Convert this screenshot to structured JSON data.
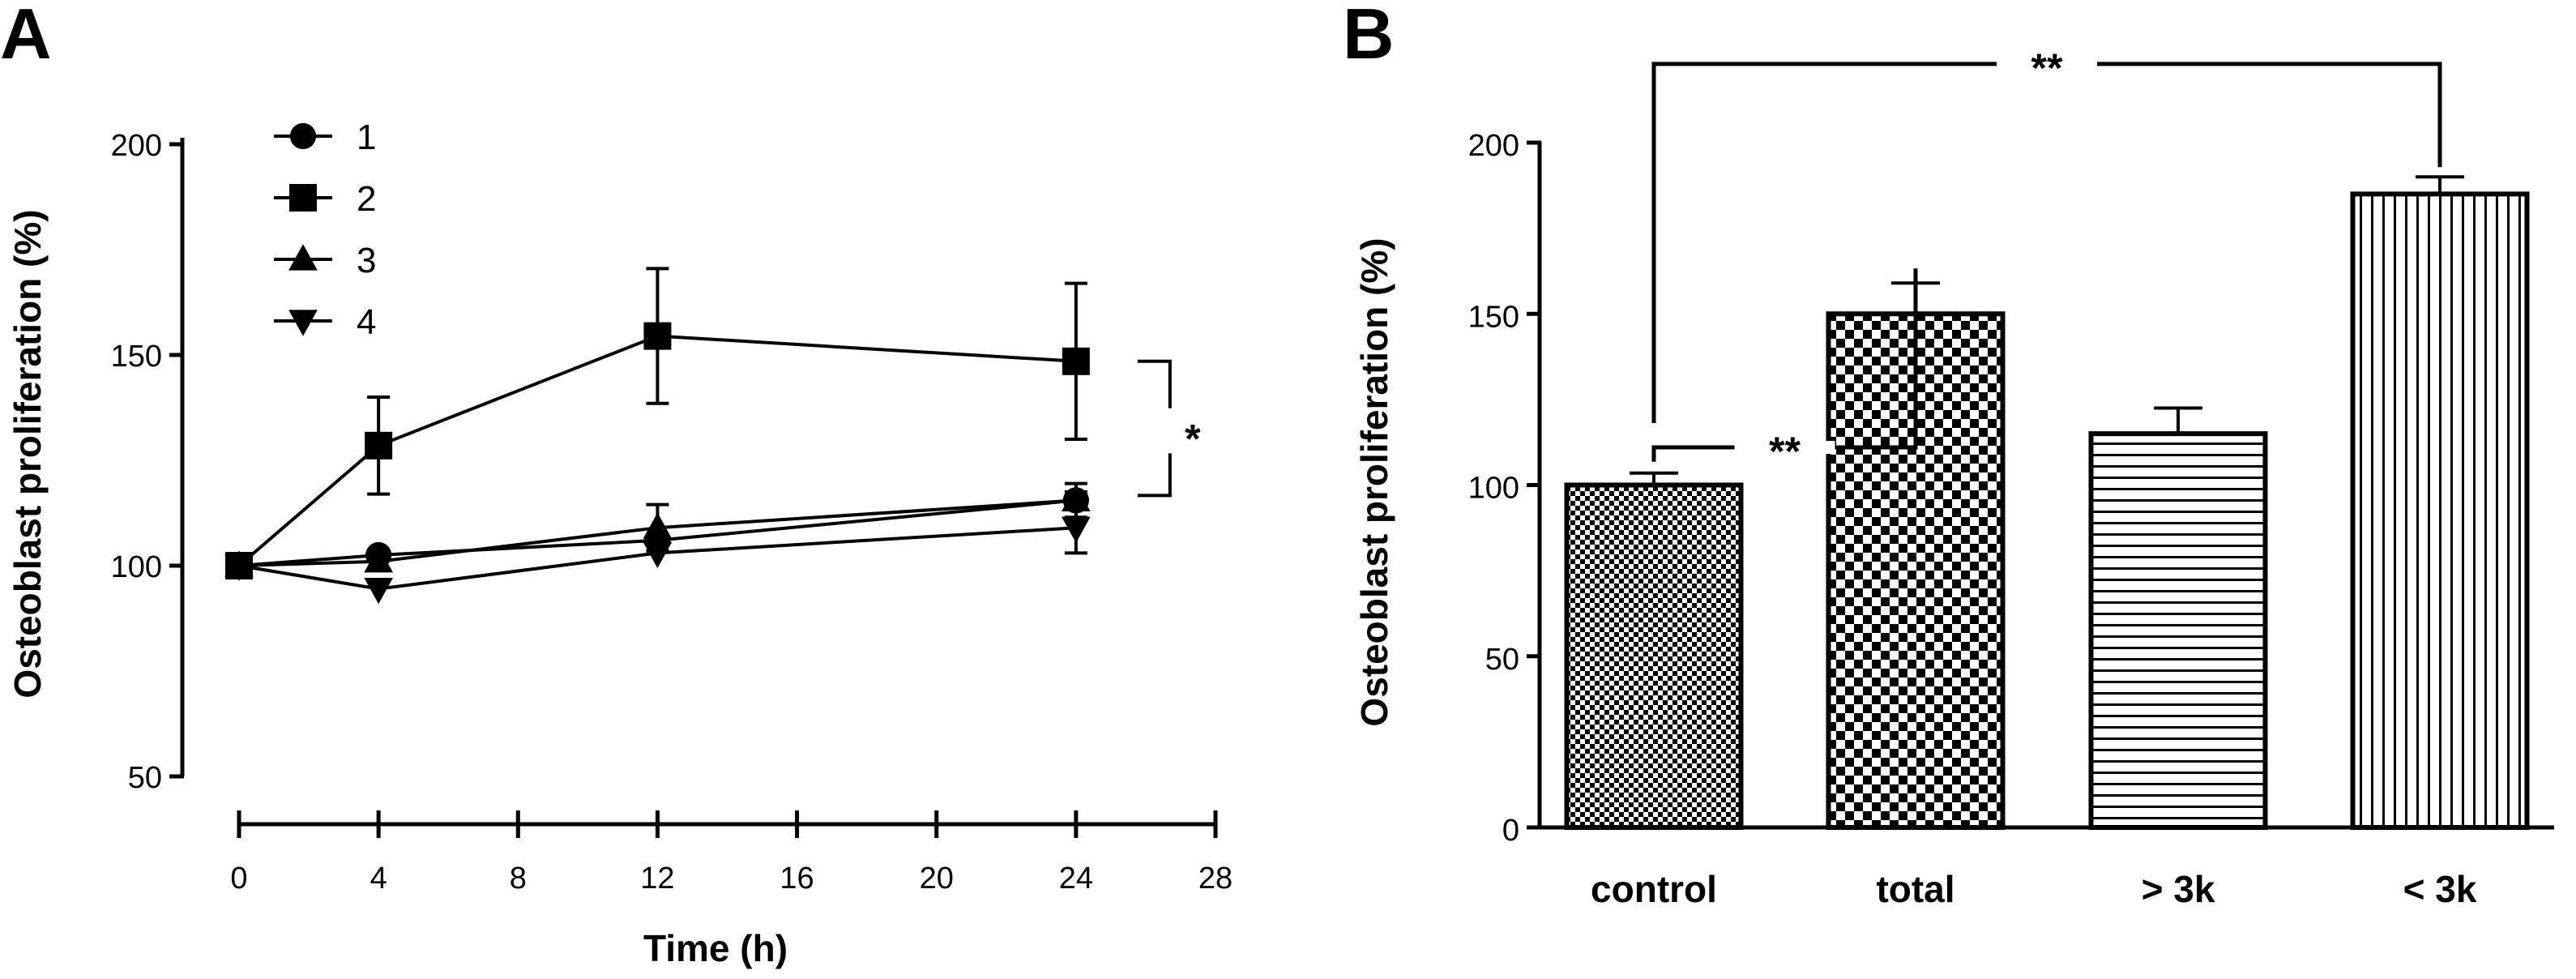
{
  "chart_data": [
    {
      "panel_label": "A",
      "type": "line",
      "xlabel": "Time (h)",
      "ylabel": "Osteoblast proliferation (%)",
      "xlim": [
        0,
        28
      ],
      "ylim": [
        50,
        200
      ],
      "xticks": [
        0,
        4,
        8,
        12,
        16,
        20,
        24,
        28
      ],
      "yticks": [
        50,
        100,
        150,
        200
      ],
      "x": [
        0,
        4,
        12,
        24
      ],
      "series": [
        {
          "name": "1",
          "marker": "circle",
          "values": [
            100,
            102.5,
            106,
            115.5
          ],
          "errors": [
            0,
            0,
            0,
            2
          ]
        },
        {
          "name": "2",
          "marker": "square",
          "values": [
            100,
            128.5,
            154.5,
            148.5
          ],
          "errors": [
            0,
            11.5,
            16,
            18.5
          ]
        },
        {
          "name": "3",
          "marker": "triangle-up",
          "values": [
            100,
            101,
            109,
            115.5
          ],
          "errors": [
            0,
            0,
            5.5,
            4
          ]
        },
        {
          "name": "4",
          "marker": "triangle-down",
          "values": [
            100,
            94.5,
            103,
            109
          ],
          "errors": [
            0,
            0,
            0,
            6
          ]
        }
      ],
      "legend_location": "top-left",
      "annotations": [
        {
          "text": "*",
          "between": [
            "2",
            "1, 3, 4"
          ],
          "at_x": 24
        }
      ]
    },
    {
      "panel_label": "B",
      "type": "bar",
      "ylabel": "Osteoblast proliferation (%)",
      "ylim": [
        0,
        200
      ],
      "yticks": [
        0,
        50,
        100,
        150,
        200
      ],
      "categories": [
        "control",
        "total",
        "> 3k",
        "< 3k"
      ],
      "values": [
        100,
        150,
        115,
        185
      ],
      "errors": [
        3.5,
        9,
        7.5,
        5
      ],
      "patterns": [
        "fine-checker",
        "coarse-checker",
        "horizontal-lines",
        "vertical-lines"
      ],
      "annotations": [
        {
          "text": "**",
          "from": "control",
          "to": "total"
        },
        {
          "text": "**",
          "from": "control",
          "to": "< 3k"
        }
      ]
    }
  ]
}
